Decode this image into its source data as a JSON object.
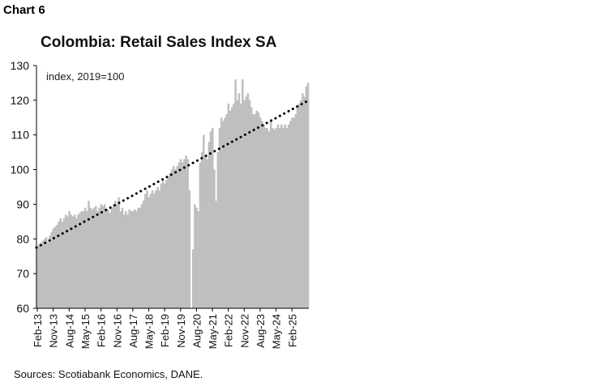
{
  "header": "Chart 6",
  "source": "Sources: Scotiabank Economics, DANE.",
  "chart_data": {
    "type": "bar",
    "title": "Colombia: Retail Sales Index SA",
    "annotation": "index, 2019=100",
    "xlabel": "",
    "ylabel": "",
    "ylim": [
      60,
      130
    ],
    "y_ticks": [
      60,
      70,
      80,
      90,
      100,
      110,
      120,
      130
    ],
    "x_tick_labels": [
      "Feb-13",
      "Nov-13",
      "Aug-14",
      "May-15",
      "Feb-16",
      "Nov-16",
      "Aug-17",
      "May-18",
      "Feb-19",
      "Nov-19",
      "Aug-20",
      "May-21",
      "Feb-22",
      "Nov-22",
      "Aug-23",
      "May-24",
      "Feb-25"
    ],
    "grid": false,
    "bar_color": "#bfbfbf",
    "trend_color": "#000000",
    "trend": {
      "style": "dotted",
      "start": 77.5,
      "end": 120
    },
    "start": "Feb-13",
    "series": [
      {
        "type": "bar",
        "values": [
          78,
          78.5,
          79,
          79.5,
          80,
          80.5,
          79,
          81,
          82,
          83,
          83.5,
          84,
          85,
          86,
          85,
          86,
          87,
          86.5,
          88,
          87,
          86.5,
          87,
          86,
          87,
          87.5,
          88,
          88,
          89,
          88,
          91,
          89,
          88.5,
          89,
          89.5,
          88,
          89,
          90,
          89.5,
          90,
          88,
          88.5,
          87.5,
          89,
          90,
          91,
          90,
          92,
          88,
          89,
          87,
          88,
          87,
          88.5,
          88,
          88,
          88.5,
          88,
          89,
          89,
          90,
          91,
          93,
          94,
          92,
          93,
          94,
          93,
          94,
          95,
          94,
          96,
          97,
          96,
          97,
          98,
          99,
          100,
          101,
          100,
          101,
          102,
          103,
          102,
          103,
          104,
          103,
          94,
          60,
          77,
          90,
          89,
          88,
          102,
          105,
          110,
          104,
          103,
          108,
          111,
          112,
          100,
          91,
          105,
          112,
          115,
          114,
          115,
          116,
          119,
          117,
          118,
          119,
          126,
          120,
          122,
          119,
          126,
          120,
          121,
          122,
          120,
          118,
          116,
          116,
          117,
          116.5,
          115,
          114,
          113,
          112,
          112,
          111,
          114,
          112,
          111.5,
          112,
          113,
          112,
          113,
          112,
          113,
          112,
          113,
          114,
          115,
          115,
          116,
          118,
          119,
          120,
          122,
          121,
          124,
          125
        ]
      }
    ]
  }
}
